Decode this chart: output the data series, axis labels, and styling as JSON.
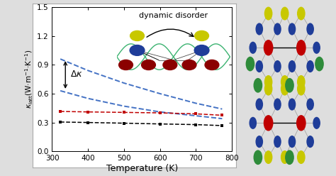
{
  "xlabel": "Temperature (K)",
  "xlim": [
    300,
    800
  ],
  "ylim": [
    0.0,
    1.5
  ],
  "yticks": [
    0.0,
    0.3,
    0.6,
    0.9,
    1.2,
    1.5
  ],
  "xticks": [
    300,
    400,
    500,
    600,
    700,
    800
  ],
  "blue_upper_x": [
    323,
    400,
    500,
    600,
    700,
    773
  ],
  "blue_upper_y": [
    0.96,
    0.84,
    0.71,
    0.6,
    0.5,
    0.44
  ],
  "blue_lower_x": [
    323,
    400,
    500,
    600,
    700,
    773
  ],
  "blue_lower_y": [
    0.63,
    0.55,
    0.47,
    0.41,
    0.37,
    0.34
  ],
  "red_x": [
    323,
    400,
    500,
    600,
    700,
    773
  ],
  "red_y": [
    0.415,
    0.41,
    0.405,
    0.4,
    0.39,
    0.375
  ],
  "black_x": [
    323,
    400,
    500,
    600,
    700,
    773
  ],
  "black_y": [
    0.305,
    0.3,
    0.293,
    0.285,
    0.278,
    0.268
  ],
  "blue_color": "#4472C4",
  "red_color": "#C00000",
  "black_color": "#000000",
  "green_color": "#3CB371",
  "yellow_color": "#C8C800",
  "dark_blue_color": "#1F3D99",
  "dark_red_color": "#8B0000",
  "atom_green": "#2E8B3A",
  "fig_width": 4.74,
  "fig_height": 2.48,
  "dpi": 100
}
